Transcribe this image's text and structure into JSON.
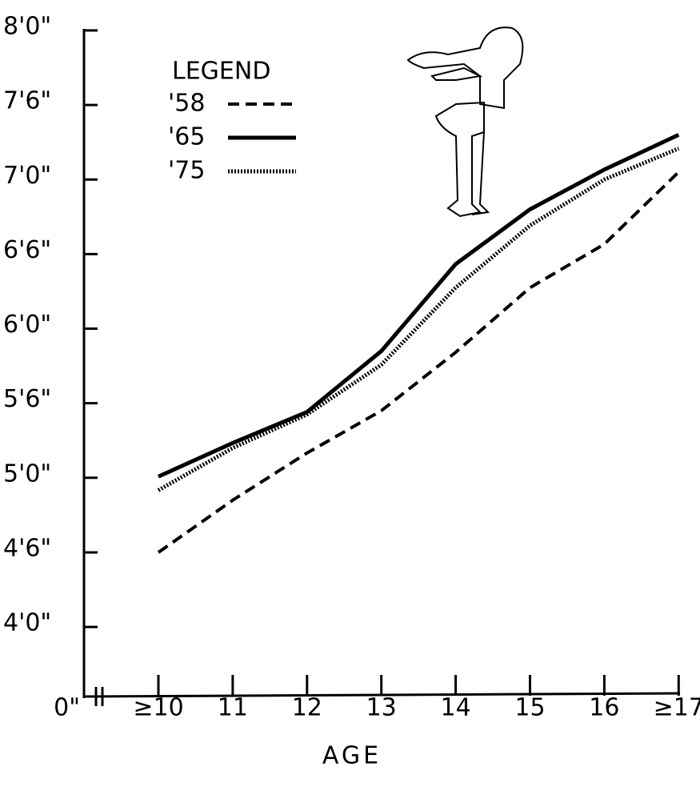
{
  "chart_data": {
    "type": "line",
    "categories": [
      "≥10",
      "11",
      "12",
      "13",
      "14",
      "15",
      "16",
      "≥17"
    ],
    "series": [
      {
        "name": "'58",
        "color": "#000000",
        "dash": "dashed",
        "values": [
          54.0,
          58.2,
          62.0,
          65.4,
          70.1,
          75.3,
          78.8,
          84.6
        ]
      },
      {
        "name": "'65",
        "color": "#000000",
        "dash": "solid",
        "values": [
          60.1,
          62.8,
          65.3,
          70.2,
          77.2,
          81.6,
          84.8,
          87.6
        ]
      },
      {
        "name": "'75",
        "color": "#000000",
        "dash": "dotted",
        "values": [
          59.0,
          62.4,
          65.1,
          69.1,
          75.3,
          80.3,
          84.0,
          86.5
        ]
      }
    ],
    "ylim": [
      42.4,
      96
    ],
    "yticks": [
      {
        "value": 96,
        "label": "8'0\""
      },
      {
        "value": 90,
        "label": "7'6\""
      },
      {
        "value": 84,
        "label": "7'0\""
      },
      {
        "value": 78,
        "label": "6'6\""
      },
      {
        "value": 72,
        "label": "6'0\""
      },
      {
        "value": 66,
        "label": "5'6\""
      },
      {
        "value": 60,
        "label": "5'0\""
      },
      {
        "value": 54,
        "label": "4'6\""
      },
      {
        "value": 48,
        "label": "4'0\""
      }
    ],
    "origin_label": "0\"",
    "x_label": "AGE",
    "legend_title": "LEGEND",
    "legend": "upper left"
  }
}
